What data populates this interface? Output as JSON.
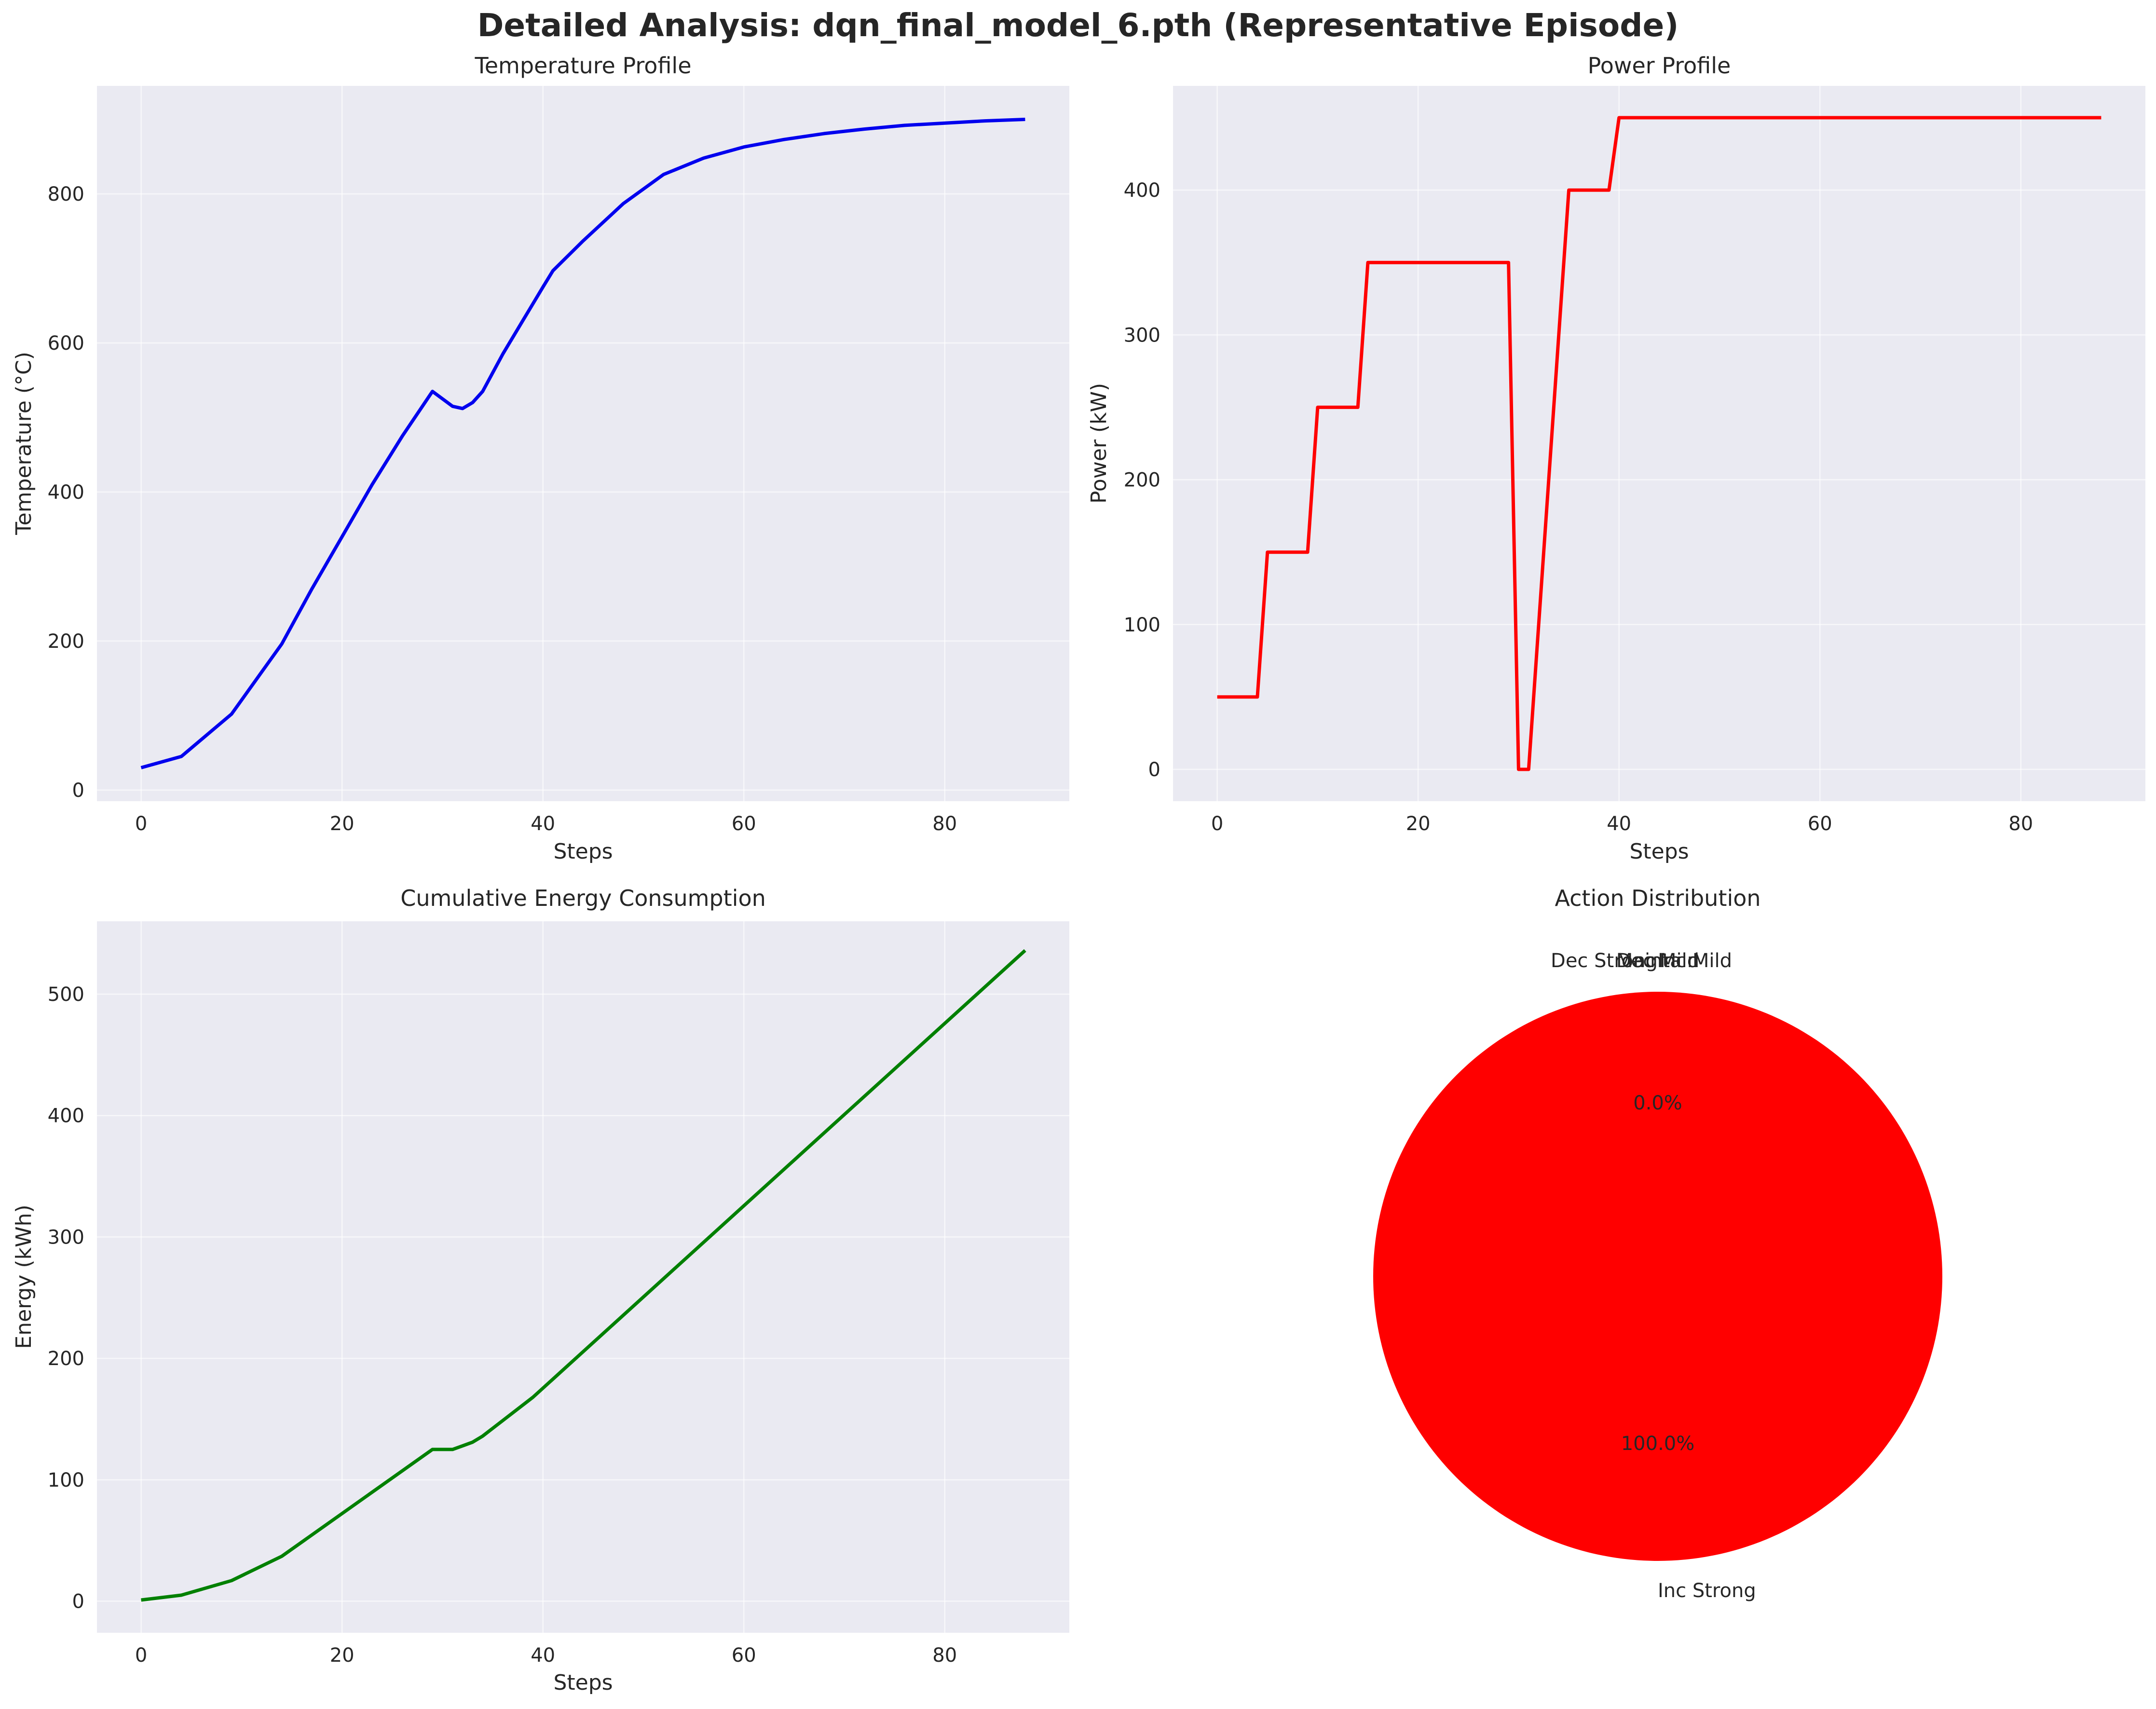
{
  "suptitle": "Detailed Analysis: dqn_final_model_6.pth (Representative Episode)",
  "colors": {
    "plot_bg": "#eaeaf2",
    "grid": "#ffffff",
    "text": "#262626"
  },
  "chart_data": [
    {
      "id": "temperature",
      "type": "line",
      "title": "Temperature Profile",
      "xlabel": "Steps",
      "ylabel": "Temperature (°C)",
      "xlim": [
        -4.4,
        92.4
      ],
      "ylim": [
        -15,
        945
      ],
      "xticks": [
        0,
        20,
        40,
        60,
        80
      ],
      "yticks": [
        0,
        200,
        400,
        600,
        800
      ],
      "grid": true,
      "series": [
        {
          "color": "#0000ee",
          "x": [
            0,
            4,
            9,
            14,
            17,
            20,
            23,
            26,
            29,
            31,
            32,
            33,
            34,
            36,
            38,
            40,
            41,
            44,
            48,
            52,
            56,
            60,
            64,
            68,
            72,
            76,
            80,
            84,
            88
          ],
          "y": [
            30,
            45,
            102,
            196,
            270,
            340,
            410,
            475,
            535,
            515,
            512,
            520,
            535,
            585,
            630,
            675,
            697,
            737,
            787,
            826,
            848,
            863,
            873,
            881,
            887,
            892,
            895,
            898,
            900
          ]
        }
      ]
    },
    {
      "id": "power",
      "type": "line",
      "title": "Power Profile",
      "xlabel": "Steps",
      "ylabel": "Power (kW)",
      "xlim": [
        -4.4,
        92.4
      ],
      "ylim": [
        -22,
        472
      ],
      "xticks": [
        0,
        20,
        40,
        60,
        80
      ],
      "yticks": [
        0,
        100,
        200,
        300,
        400
      ],
      "grid": true,
      "series": [
        {
          "color": "#ff0000",
          "x": [
            0,
            4,
            5,
            9,
            10,
            14,
            15,
            29,
            30,
            31,
            35,
            39,
            40,
            88
          ],
          "y": [
            50,
            50,
            150,
            150,
            250,
            250,
            350,
            350,
            0,
            0,
            400,
            400,
            450,
            450
          ]
        }
      ]
    },
    {
      "id": "energy",
      "type": "line",
      "title": "Cumulative Energy Consumption",
      "xlabel": "Steps",
      "ylabel": "Energy (kWh)",
      "xlim": [
        -4.4,
        92.4
      ],
      "ylim": [
        -26,
        560
      ],
      "xticks": [
        0,
        20,
        40,
        60,
        80
      ],
      "yticks": [
        0,
        100,
        200,
        300,
        400,
        500
      ],
      "grid": true,
      "series": [
        {
          "color": "#008000",
          "x": [
            0,
            4,
            9,
            14,
            29,
            31,
            32,
            33,
            34,
            39,
            88
          ],
          "y": [
            1,
            5,
            17,
            37,
            125,
            125,
            128,
            131,
            136,
            168,
            536
          ]
        }
      ]
    },
    {
      "id": "actions",
      "type": "pie",
      "title": "Action Distribution",
      "slices": [
        {
          "label": "Dec Strong",
          "value": 0
        },
        {
          "label": "Dec Mild",
          "value": 0
        },
        {
          "label": "Maintain",
          "value": 0
        },
        {
          "label": "Inc Mild",
          "value": 0
        },
        {
          "label": "Inc Strong",
          "value": 100,
          "color": "#ff0000"
        }
      ],
      "pct_labels": [
        "0.0%",
        "100.0%"
      ]
    }
  ]
}
